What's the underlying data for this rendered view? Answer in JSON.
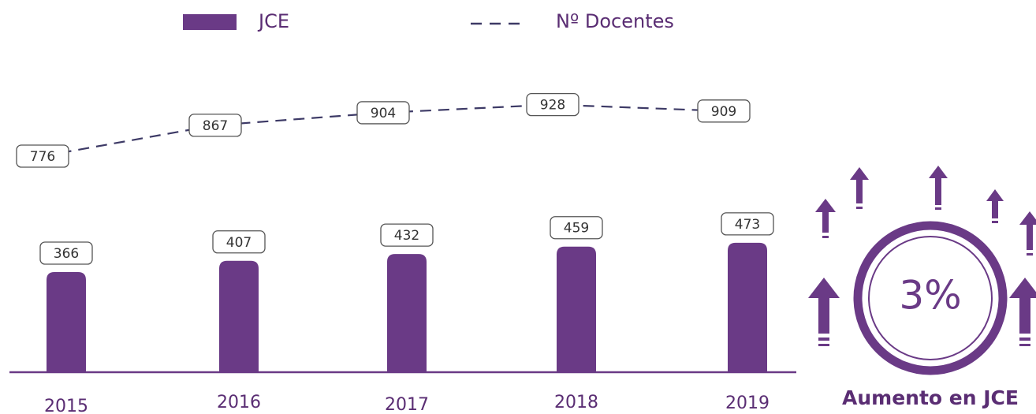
{
  "chart_data": {
    "type": "bar_line",
    "categories": [
      "2015",
      "2016",
      "2017",
      "2018",
      "2019"
    ],
    "series": [
      {
        "name": "JCE",
        "color": "#6a3a86",
        "values": [
          366,
          407,
          432,
          459,
          473
        ]
      },
      {
        "name": "Nº Docentes",
        "color": "#3d3a66",
        "values": [
          776,
          867,
          904,
          928,
          909
        ]
      }
    ],
    "callout": {
      "label": "3%",
      "caption": "Aumento en JCE"
    }
  }
}
